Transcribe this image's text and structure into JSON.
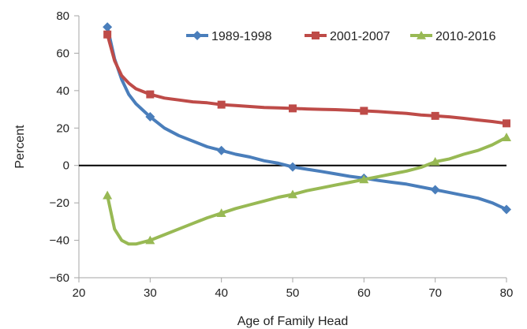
{
  "chart_data": {
    "type": "line",
    "title": "",
    "xlabel": "Age of Family Head",
    "ylabel": "Percent",
    "xlim": [
      20,
      80
    ],
    "ylim": [
      -60,
      80
    ],
    "xticks": [
      20,
      30,
      40,
      50,
      60,
      70,
      80
    ],
    "yticks": [
      -60,
      -40,
      -20,
      0,
      20,
      40,
      60,
      80
    ],
    "x_tick_labels": [
      "20",
      "30",
      "40",
      "50",
      "60",
      "70",
      "80"
    ],
    "y_tick_labels": [
      "−60",
      "−40",
      "−20",
      "0",
      "20",
      "40",
      "60",
      "80"
    ],
    "grid": false,
    "zero_line": true,
    "legend_position": "top-right",
    "series": [
      {
        "name": "1989-1998",
        "color": "#4a7ebb",
        "marker": "diamond",
        "x": [
          24,
          25,
          26,
          27,
          28,
          30,
          32,
          34,
          36,
          38,
          40,
          42,
          44,
          46,
          48,
          50,
          52,
          54,
          56,
          58,
          60,
          62,
          64,
          66,
          68,
          70,
          72,
          74,
          76,
          78,
          80
        ],
        "y": [
          74,
          57,
          46,
          38,
          33,
          26,
          20,
          16,
          13,
          10,
          8,
          6,
          4.5,
          2.5,
          1.2,
          -0.8,
          -2,
          -3.2,
          -4.5,
          -5.8,
          -6.8,
          -8,
          -9,
          -10,
          -11.5,
          -13,
          -14.5,
          -16,
          -17.5,
          -20,
          -23.5
        ]
      },
      {
        "name": "2001-2007",
        "color": "#be4b48",
        "marker": "square",
        "x": [
          24,
          25,
          26,
          27,
          28,
          30,
          32,
          34,
          36,
          38,
          40,
          42,
          44,
          46,
          48,
          50,
          52,
          54,
          56,
          58,
          60,
          62,
          64,
          66,
          68,
          70,
          72,
          74,
          76,
          78,
          80
        ],
        "y": [
          70,
          56,
          48,
          44,
          41,
          38,
          36,
          35,
          34,
          33.5,
          32.5,
          32,
          31.5,
          31,
          30.8,
          30.5,
          30.2,
          30,
          29.8,
          29.5,
          29.2,
          28.8,
          28.3,
          27.8,
          27,
          26.5,
          26,
          25.2,
          24.3,
          23.5,
          22.5
        ]
      },
      {
        "name": "2010-2016",
        "color": "#98b954",
        "marker": "triangle",
        "x": [
          24,
          25,
          26,
          27,
          28,
          30,
          32,
          34,
          36,
          38,
          40,
          42,
          44,
          46,
          48,
          50,
          52,
          54,
          56,
          58,
          60,
          62,
          64,
          66,
          68,
          70,
          72,
          74,
          76,
          78,
          80
        ],
        "y": [
          -16,
          -34,
          -40,
          -42,
          -42,
          -40,
          -37,
          -34,
          -31,
          -28,
          -25.5,
          -23,
          -21,
          -19,
          -17,
          -15.5,
          -13.5,
          -12,
          -10.5,
          -9,
          -7.5,
          -6,
          -4.5,
          -3,
          -1,
          2,
          3.5,
          6,
          8,
          11,
          15
        ]
      }
    ],
    "marker_x": [
      24,
      30,
      40,
      50,
      60,
      70,
      80
    ]
  }
}
